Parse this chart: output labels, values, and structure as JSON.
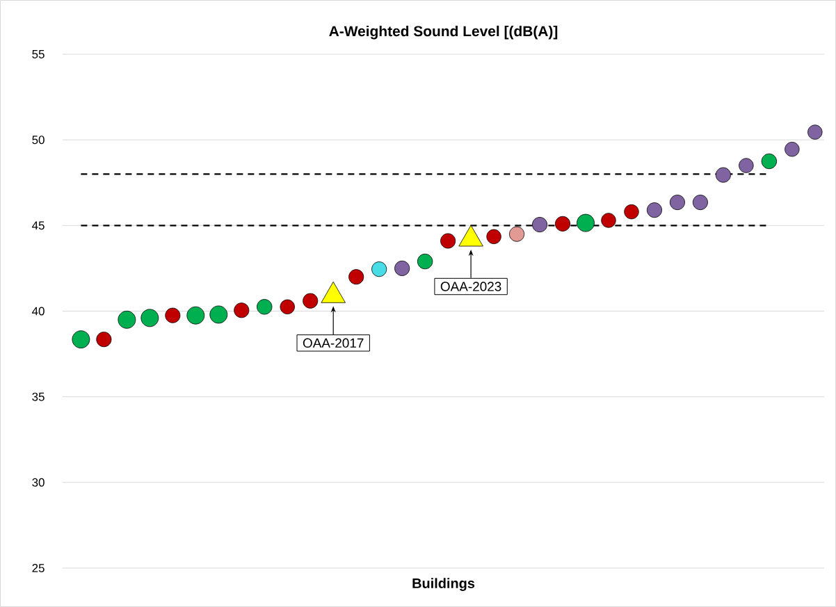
{
  "chart_data": {
    "type": "bubble",
    "title": "A-Weighted Sound Level [(dB(A)]",
    "xlabel": "Buildings",
    "categories": [
      null,
      null,
      null,
      null,
      null,
      null,
      null,
      null,
      null,
      null,
      null,
      null,
      null,
      null,
      null,
      null,
      null,
      null,
      null,
      null,
      null,
      null,
      null,
      null,
      null,
      null,
      null,
      null,
      null,
      null,
      null,
      null,
      null
    ],
    "ylim": [
      25,
      55
    ],
    "yticks": [
      25,
      30,
      35,
      40,
      45,
      50,
      55
    ],
    "grid": "y",
    "series": [
      {
        "color": "#00b050",
        "marker": "circle",
        "values": [
          38.35,
          null,
          39.5,
          39.6,
          null,
          39.75,
          39.8,
          null,
          40.25,
          null,
          null,
          null,
          null,
          null,
          null,
          42.9,
          null,
          null,
          null,
          null,
          null,
          null,
          45.15,
          null,
          null,
          null,
          null,
          null,
          null,
          null,
          48.75,
          null,
          null
        ],
        "sizes": [
          1,
          null,
          1,
          1,
          null,
          1,
          1,
          null,
          0.74,
          null,
          null,
          null,
          null,
          null,
          null,
          0.74,
          null,
          null,
          null,
          null,
          null,
          null,
          1,
          null,
          null,
          null,
          null,
          null,
          null,
          null,
          0.74,
          null,
          null
        ]
      },
      {
        "color": "#c00000",
        "marker": "circle",
        "values": [
          null,
          38.35,
          null,
          null,
          39.75,
          null,
          null,
          40.05,
          null,
          40.25,
          40.6,
          null,
          42.0,
          null,
          null,
          null,
          44.1,
          null,
          44.35,
          null,
          null,
          45.1,
          null,
          45.3,
          45.8,
          null,
          null,
          null,
          null,
          null,
          null,
          null,
          null
        ],
        "sizes": [
          null,
          0.72,
          null,
          null,
          0.72,
          null,
          null,
          0.72,
          null,
          0.676,
          0.72,
          null,
          0.72,
          null,
          null,
          null,
          0.72,
          null,
          0.676,
          null,
          null,
          0.72,
          null,
          0.676,
          0.676,
          null,
          null,
          null,
          null,
          null,
          null,
          null,
          null
        ]
      },
      {
        "color": "#8064a2",
        "marker": "circle",
        "values": [
          null,
          null,
          null,
          null,
          null,
          null,
          null,
          null,
          null,
          null,
          null,
          null,
          null,
          null,
          42.5,
          null,
          null,
          null,
          null,
          null,
          45.05,
          null,
          null,
          null,
          null,
          45.9,
          46.35,
          46.35,
          47.95,
          48.5,
          null,
          49.45,
          50.45
        ],
        "sizes": [
          null,
          null,
          null,
          null,
          null,
          null,
          null,
          null,
          null,
          null,
          null,
          null,
          null,
          null,
          0.72,
          null,
          null,
          null,
          null,
          null,
          0.72,
          null,
          null,
          null,
          null,
          0.72,
          0.72,
          0.72,
          0.72,
          0.676,
          null,
          0.676,
          0.676
        ]
      },
      {
        "color": "#48dce6",
        "marker": "circle",
        "values": [
          null,
          null,
          null,
          null,
          null,
          null,
          null,
          null,
          null,
          null,
          null,
          null,
          null,
          42.45,
          null,
          null,
          null,
          null,
          null,
          null,
          null,
          null,
          null,
          null,
          null,
          null,
          null,
          null,
          null,
          null,
          null,
          null,
          null
        ],
        "sizes": [
          null,
          null,
          null,
          null,
          null,
          null,
          null,
          null,
          null,
          null,
          null,
          null,
          null,
          0.72,
          null,
          null,
          null,
          null,
          null,
          null,
          null,
          null,
          null,
          null,
          null,
          null,
          null,
          null,
          null,
          null,
          null,
          null,
          null
        ]
      },
      {
        "color": "#e29a94",
        "marker": "circle",
        "values": [
          null,
          null,
          null,
          null,
          null,
          null,
          null,
          null,
          null,
          null,
          null,
          null,
          null,
          null,
          null,
          null,
          null,
          null,
          null,
          44.5,
          null,
          null,
          null,
          null,
          null,
          null,
          null,
          null,
          null,
          null,
          null,
          null,
          null
        ],
        "sizes": [
          null,
          null,
          null,
          null,
          null,
          null,
          null,
          null,
          null,
          null,
          null,
          null,
          null,
          null,
          null,
          null,
          null,
          null,
          null,
          0.72,
          null,
          null,
          null,
          null,
          null,
          null,
          null,
          null,
          null,
          null,
          null,
          null,
          null
        ]
      },
      {
        "type": "scatter",
        "color": "#ffff00",
        "marker": "triangle",
        "values": [
          null,
          null,
          null,
          null,
          null,
          null,
          null,
          null,
          null,
          null,
          null,
          40.9,
          null,
          null,
          null,
          null,
          null,
          null,
          null,
          null,
          null,
          null,
          null,
          null,
          null,
          null,
          null,
          null,
          null,
          null,
          null,
          null,
          null
        ]
      },
      {
        "type": "scatter",
        "color": "#ffff00",
        "marker": "triangle",
        "values": [
          null,
          null,
          null,
          null,
          null,
          null,
          null,
          null,
          null,
          null,
          null,
          null,
          null,
          null,
          null,
          null,
          null,
          44.2,
          null,
          null,
          null,
          null,
          null,
          null,
          null,
          null,
          null,
          null,
          null,
          null,
          null,
          null,
          null
        ]
      }
    ],
    "ref_lines": [
      {
        "axis": "y",
        "value": 45,
        "color": "#000000",
        "line_style": "dashed"
      },
      {
        "axis": "y",
        "value": 48,
        "color": "#000000",
        "line_style": "dashed"
      }
    ],
    "annotations": [
      "OAA-2017",
      "OAA-2023"
    ]
  }
}
